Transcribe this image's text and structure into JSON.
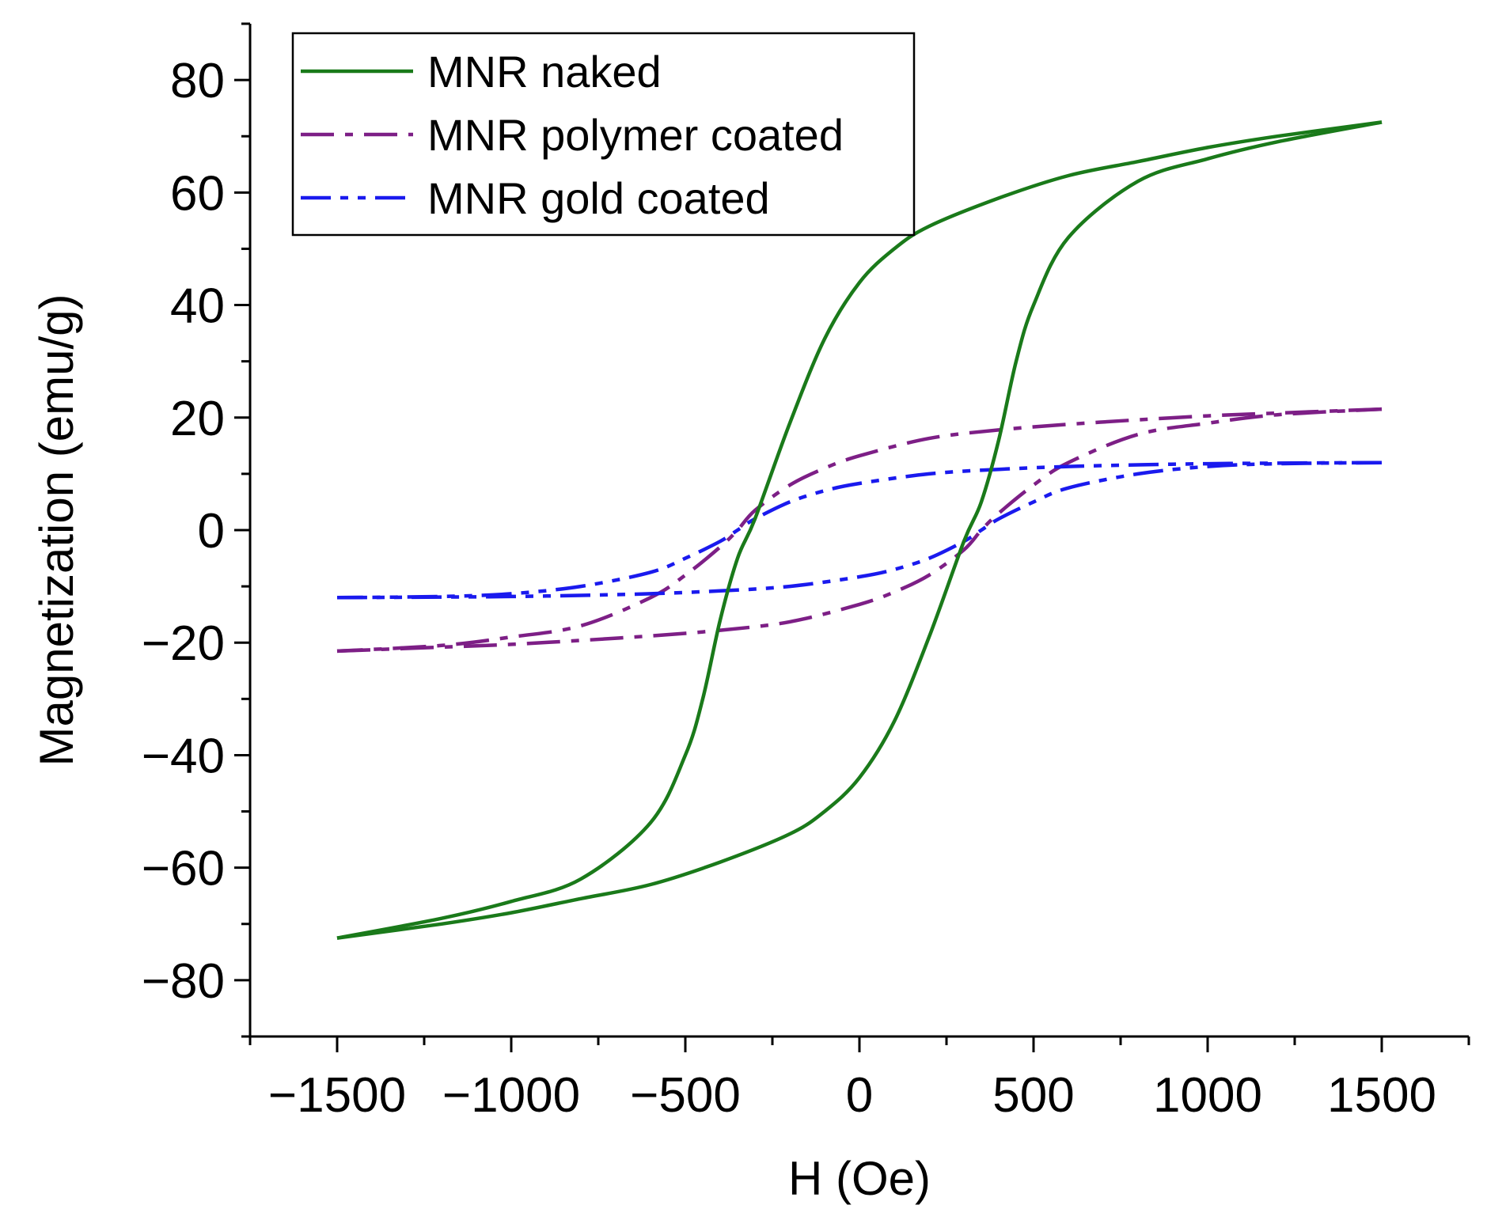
{
  "chart_data": {
    "type": "line",
    "title": "",
    "xlabel": "H (Oe)",
    "ylabel": "Magnetization (emu/g)",
    "xlim": [
      -1750,
      1750
    ],
    "ylim": [
      -90,
      90
    ],
    "x_ticks": [
      -1500,
      -1000,
      -500,
      0,
      500,
      1000,
      1500
    ],
    "x_tick_labels": [
      "−1500",
      "−1000",
      "−500",
      "0",
      "500",
      "1000",
      "1500"
    ],
    "y_ticks": [
      -80,
      -60,
      -40,
      -20,
      0,
      20,
      40,
      60,
      80
    ],
    "y_tick_labels": [
      "−80",
      "−60",
      "−40",
      "−20",
      "0",
      "20",
      "40",
      "60",
      "80"
    ],
    "grid": false,
    "legend_position": "top-left",
    "series": [
      {
        "name": "MNR naked",
        "color": "#1a7a1a",
        "dash": "solid",
        "descending": {
          "x": [
            1500,
            1200,
            1000,
            800,
            600,
            400,
            200,
            100,
            0,
            -100,
            -200,
            -300,
            -350,
            -400,
            -450,
            -500,
            -600,
            -800,
            -1000,
            -1200,
            -1500
          ],
          "y": [
            72.5,
            70,
            68,
            65.5,
            63,
            59,
            54,
            50,
            44,
            34,
            19,
            2,
            -5,
            -16,
            -30,
            -40,
            -52,
            -62,
            -66,
            -69,
            -72.5
          ]
        },
        "ascending": {
          "x": [
            -1500,
            -1200,
            -1000,
            -800,
            -600,
            -400,
            -200,
            -100,
            0,
            100,
            200,
            300,
            350,
            400,
            450,
            500,
            600,
            800,
            1000,
            1200,
            1500
          ],
          "y": [
            -72.5,
            -70,
            -68,
            -65.5,
            -63,
            -59,
            -54,
            -50,
            -44,
            -34,
            -19,
            -2,
            5,
            16,
            30,
            40,
            52,
            62,
            66,
            69,
            72.5
          ]
        }
      },
      {
        "name": "MNR polymer coated",
        "color": "#7d1f86",
        "dash": "dashdot",
        "descending": {
          "x": [
            1500,
            1200,
            1000,
            800,
            600,
            400,
            200,
            0,
            -100,
            -200,
            -300,
            -350,
            -400,
            -500,
            -600,
            -800,
            -1000,
            -1200,
            -1500
          ],
          "y": [
            21.5,
            20.8,
            20.3,
            19.6,
            18.8,
            17.8,
            16.3,
            13.2,
            11,
            8,
            3.5,
            0,
            -3,
            -8,
            -12,
            -17,
            -19,
            -20.5,
            -21.5
          ]
        },
        "ascending": {
          "x": [
            -1500,
            -1200,
            -1000,
            -800,
            -600,
            -400,
            -200,
            0,
            100,
            200,
            300,
            350,
            400,
            500,
            600,
            800,
            1000,
            1200,
            1500
          ],
          "y": [
            -21.5,
            -20.8,
            -20.3,
            -19.6,
            -18.8,
            -17.8,
            -16.3,
            -13.2,
            -11,
            -8,
            -3.5,
            0,
            3,
            8,
            12,
            17,
            19,
            20.5,
            21.5
          ]
        }
      },
      {
        "name": "MNR gold coated",
        "color": "#1a1aee",
        "dash": "dashdotdot",
        "descending": {
          "x": [
            1500,
            1200,
            1000,
            800,
            600,
            400,
            200,
            0,
            -100,
            -200,
            -300,
            -350,
            -400,
            -500,
            -600,
            -800,
            -1000,
            -1200,
            -1500
          ],
          "y": [
            12,
            11.9,
            11.8,
            11.6,
            11.3,
            10.8,
            10,
            8.3,
            7,
            5,
            2,
            0,
            -2,
            -5,
            -7.5,
            -10,
            -11.3,
            -11.8,
            -12
          ]
        },
        "ascending": {
          "x": [
            -1500,
            -1200,
            -1000,
            -800,
            -600,
            -400,
            -200,
            0,
            100,
            200,
            300,
            350,
            400,
            500,
            600,
            800,
            1000,
            1200,
            1500
          ],
          "y": [
            -12,
            -11.9,
            -11.8,
            -11.6,
            -11.3,
            -10.8,
            -10,
            -8.3,
            -7,
            -5,
            -2,
            0,
            2,
            5,
            7.5,
            10,
            11.3,
            11.8,
            12
          ]
        }
      }
    ]
  }
}
